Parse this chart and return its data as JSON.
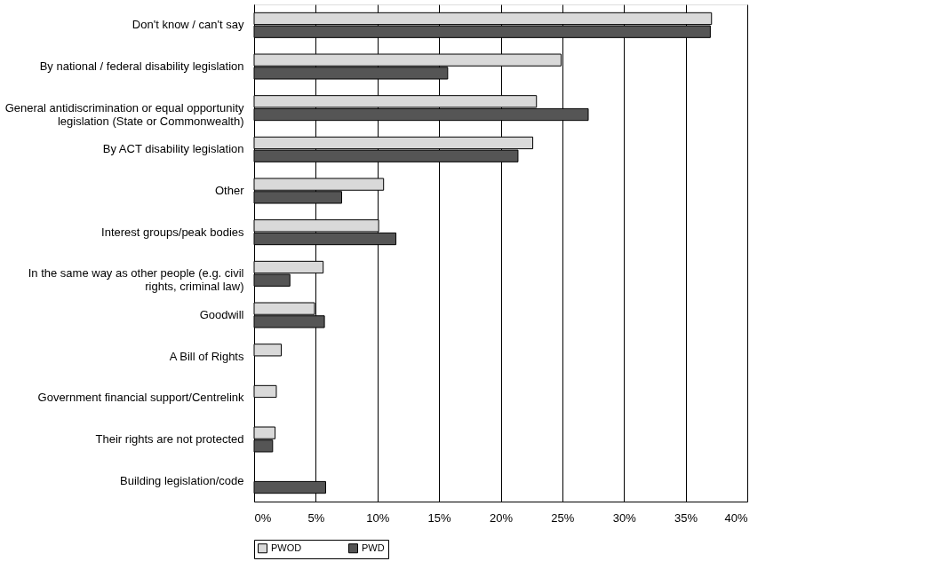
{
  "chart_data": {
    "type": "bar",
    "orientation": "horizontal",
    "categories": [
      "Don't know / can't say",
      "By national / federal disability legislation",
      "General antidiscrimination or equal opportunity legislation (State or Commonwealth)",
      "By ACT disability legislation",
      "Other",
      "Interest groups/peak bodies",
      "In the same way as other people (e.g. civil rights, criminal law)",
      "Goodwill",
      "A Bill of Rights",
      "Government financial support/Centrelink",
      "Their rights are not protected",
      "Building legislation/code"
    ],
    "series": [
      {
        "name": "PWOD",
        "color": "#d9d9d9",
        "values": [
          37.1,
          24.9,
          22.9,
          22.6,
          10.5,
          10.1,
          5.6,
          4.9,
          2.2,
          1.8,
          1.7,
          null
        ]
      },
      {
        "name": "PWD",
        "color": "#555555",
        "values": [
          37.0,
          15.7,
          27.1,
          21.4,
          7.1,
          11.5,
          2.9,
          5.7,
          null,
          null,
          1.5,
          5.8
        ]
      }
    ],
    "xlim": [
      0,
      40
    ],
    "xticks": [
      {
        "value": 0,
        "label": "0%"
      },
      {
        "value": 5,
        "label": "5%"
      },
      {
        "value": 10,
        "label": "10%"
      },
      {
        "value": 15,
        "label": "15%"
      },
      {
        "value": 20,
        "label": "20%"
      },
      {
        "value": 25,
        "label": "25%"
      },
      {
        "value": 30,
        "label": "30%"
      },
      {
        "value": 35,
        "label": "35%"
      },
      {
        "value": 40,
        "label": "40%"
      }
    ],
    "grid": "x",
    "legend": "bottom"
  }
}
